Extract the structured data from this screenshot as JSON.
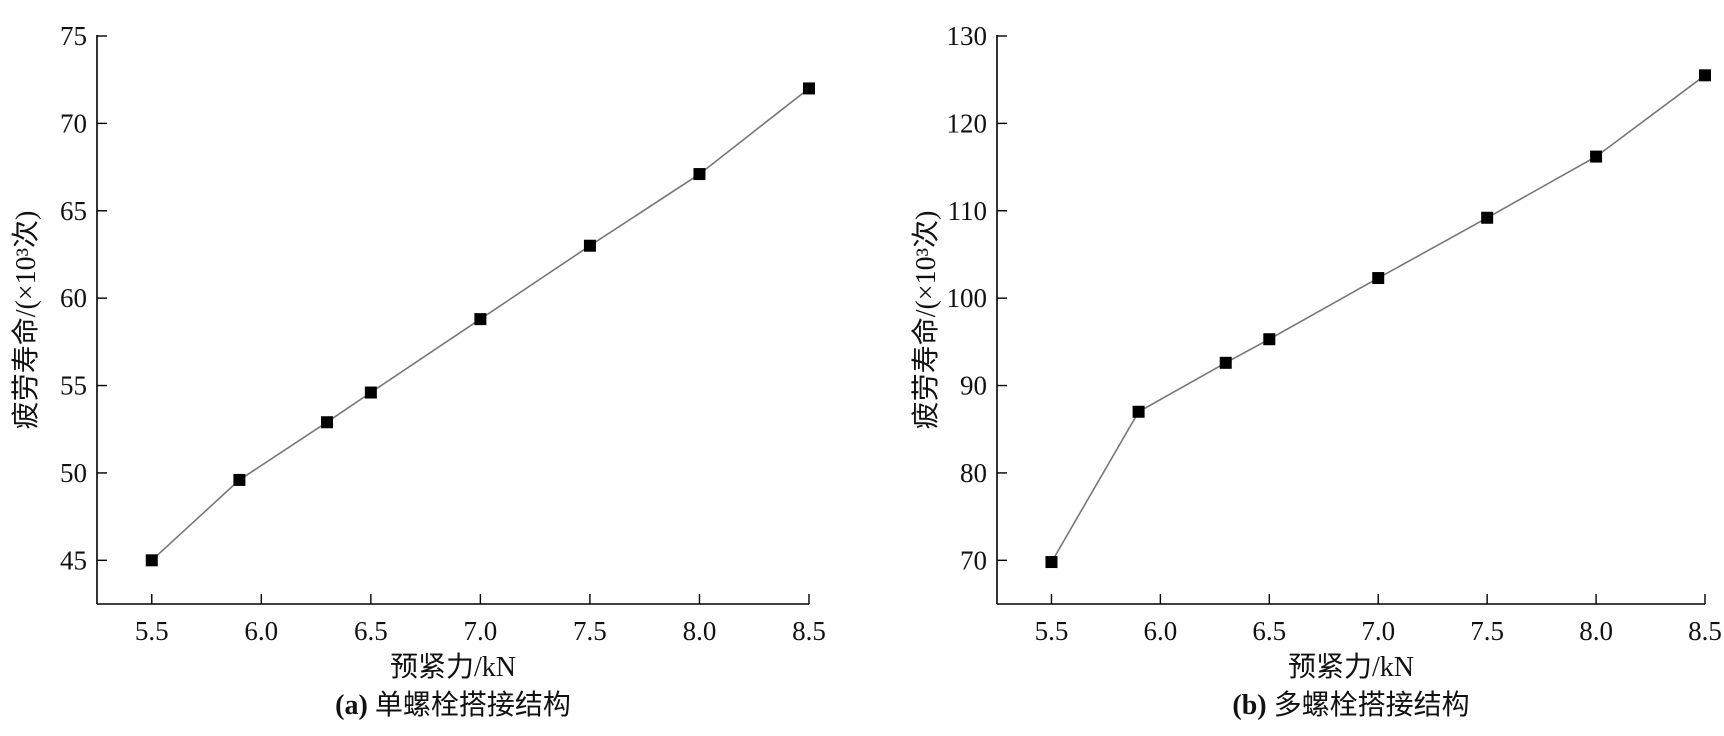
{
  "chart_data": [
    {
      "type": "line",
      "caption_tag": "(a)",
      "caption_text": "单螺栓搭接结构",
      "xlabel": "预紧力/kN",
      "ylabel": "疲劳寿命/(×10³次)",
      "xlim": [
        5.25,
        8.5
      ],
      "ylim": [
        42.5,
        75
      ],
      "x_ticks": [
        5.5,
        6.0,
        6.5,
        7.0,
        7.5,
        8.0,
        8.5
      ],
      "x_tick_labels": [
        "5.5",
        "6.0",
        "6.5",
        "7.0",
        "7.5",
        "8.0",
        "8.5"
      ],
      "y_ticks": [
        45,
        50,
        55,
        60,
        65,
        70,
        75
      ],
      "y_tick_labels": [
        "45",
        "50",
        "55",
        "60",
        "65",
        "70",
        "75"
      ],
      "marker": "square",
      "line_color": "#777777",
      "marker_color": "#000000",
      "series": [
        {
          "x": [
            5.5,
            5.9,
            6.3,
            6.5,
            7.0,
            7.5,
            8.0,
            8.5
          ],
          "y": [
            45.0,
            49.6,
            52.9,
            54.6,
            58.8,
            63.0,
            67.1,
            72.0
          ]
        }
      ]
    },
    {
      "type": "line",
      "caption_tag": "(b)",
      "caption_text": "多螺栓搭接结构",
      "xlabel": "预紧力/kN",
      "ylabel": "疲劳寿命/(×10³次)",
      "xlim": [
        5.25,
        8.5
      ],
      "ylim": [
        65,
        130
      ],
      "x_ticks": [
        5.5,
        6.0,
        6.5,
        7.0,
        7.5,
        8.0,
        8.5
      ],
      "x_tick_labels": [
        "5.5",
        "6.0",
        "6.5",
        "7.0",
        "7.5",
        "8.0",
        "8.5"
      ],
      "y_ticks": [
        70,
        80,
        90,
        100,
        110,
        120,
        130
      ],
      "y_tick_labels": [
        "70",
        "80",
        "90",
        "100",
        "110",
        "120",
        "130"
      ],
      "marker": "square",
      "line_color": "#777777",
      "marker_color": "#000000",
      "series": [
        {
          "x": [
            5.5,
            5.9,
            6.3,
            6.5,
            7.0,
            7.5,
            8.0,
            8.5
          ],
          "y": [
            69.8,
            87.0,
            92.6,
            95.3,
            102.3,
            109.2,
            116.2,
            125.5
          ]
        }
      ]
    }
  ]
}
